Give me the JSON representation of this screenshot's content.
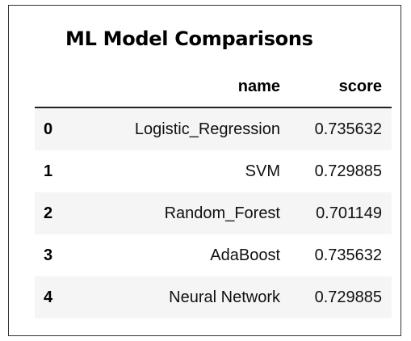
{
  "title": "ML Model Comparisons",
  "table": {
    "columns": [
      "name",
      "score"
    ],
    "rows": [
      {
        "index": "0",
        "name": "Logistic_Regression",
        "score": "0.735632"
      },
      {
        "index": "1",
        "name": "SVM",
        "score": "0.729885"
      },
      {
        "index": "2",
        "name": "Random_Forest",
        "score": "0.701149"
      },
      {
        "index": "3",
        "name": "AdaBoost",
        "score": "0.735632"
      },
      {
        "index": "4",
        "name": "Neural Network",
        "score": "0.729885"
      }
    ]
  },
  "colors": {
    "stripe": "#f5f5f5",
    "border": "#333333",
    "text": "#000000"
  }
}
